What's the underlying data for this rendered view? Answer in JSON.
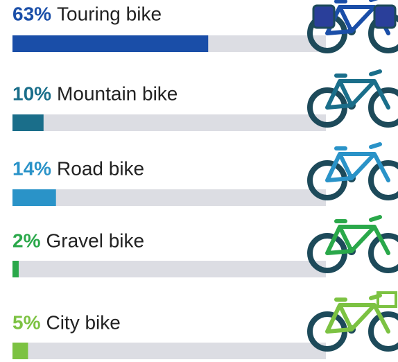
{
  "chart_data": {
    "type": "progress-bar",
    "categories": [
      "Touring bike",
      "Mountain bike",
      "Road bike",
      "Gravel bike",
      "City bike"
    ],
    "values": [
      63,
      10,
      14,
      2,
      5
    ],
    "value_labels": [
      "63%",
      "10%",
      "14%",
      "2%",
      "5%"
    ],
    "colors": [
      "#1a4ea8",
      "#1a6e8a",
      "#2a93c8",
      "#2aa84a",
      "#7cc242"
    ],
    "xlim": [
      0,
      100
    ]
  }
}
